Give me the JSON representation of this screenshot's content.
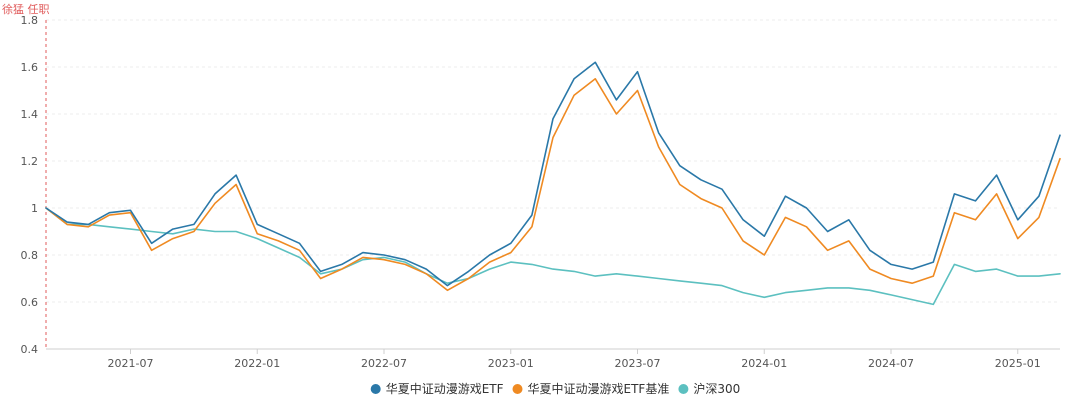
{
  "chart_data": {
    "type": "line",
    "annotation": {
      "label": "徐猛 任职",
      "date": "2021-03",
      "color": "#e05b5b"
    },
    "ylim": [
      0.4,
      1.8
    ],
    "yticks": [
      0.4,
      0.6,
      0.8,
      1,
      1.2,
      1.4,
      1.6,
      1.8
    ],
    "ytick_labels": [
      "0.4",
      "0.6",
      "0.8",
      "1",
      "1.2",
      "1.4",
      "1.6",
      "1.8"
    ],
    "xlim": [
      "2021-03",
      "2025-03"
    ],
    "xticks": [
      "2021-07",
      "2022-01",
      "2022-07",
      "2023-01",
      "2023-07",
      "2024-01",
      "2024-07",
      "2025-01"
    ],
    "grid": true,
    "legend_position": "bottom-center",
    "x": [
      "2021-03",
      "2021-04",
      "2021-05",
      "2021-06",
      "2021-07",
      "2021-08",
      "2021-09",
      "2021-10",
      "2021-11",
      "2021-12",
      "2022-01",
      "2022-02",
      "2022-03",
      "2022-04",
      "2022-05",
      "2022-06",
      "2022-07",
      "2022-08",
      "2022-09",
      "2022-10",
      "2022-11",
      "2022-12",
      "2023-01",
      "2023-02",
      "2023-03",
      "2023-04",
      "2023-05",
      "2023-06",
      "2023-07",
      "2023-08",
      "2023-09",
      "2023-10",
      "2023-11",
      "2023-12",
      "2024-01",
      "2024-02",
      "2024-03",
      "2024-04",
      "2024-05",
      "2024-06",
      "2024-07",
      "2024-08",
      "2024-09",
      "2024-10",
      "2024-11",
      "2024-12",
      "2025-01",
      "2025-02",
      "2025-03"
    ],
    "series": [
      {
        "name": "华夏中证动漫游戏ETF",
        "color": "#2a78a8",
        "values": [
          1.0,
          0.94,
          0.93,
          0.98,
          0.99,
          0.85,
          0.91,
          0.93,
          1.06,
          1.14,
          0.93,
          0.89,
          0.85,
          0.73,
          0.76,
          0.81,
          0.8,
          0.78,
          0.74,
          0.67,
          0.73,
          0.8,
          0.85,
          0.97,
          1.38,
          1.55,
          1.62,
          1.46,
          1.58,
          1.32,
          1.18,
          1.12,
          1.08,
          0.95,
          0.88,
          1.05,
          1.0,
          0.9,
          0.95,
          0.82,
          0.76,
          0.74,
          0.77,
          1.06,
          1.03,
          1.14,
          0.95,
          1.05,
          1.31
        ]
      },
      {
        "name": "华夏中证动漫游戏ETF基准",
        "color": "#ef8a22",
        "values": [
          1.0,
          0.93,
          0.92,
          0.97,
          0.98,
          0.82,
          0.87,
          0.9,
          1.02,
          1.1,
          0.89,
          0.86,
          0.82,
          0.7,
          0.74,
          0.79,
          0.78,
          0.76,
          0.72,
          0.65,
          0.7,
          0.77,
          0.81,
          0.92,
          1.3,
          1.48,
          1.55,
          1.4,
          1.5,
          1.26,
          1.1,
          1.04,
          1.0,
          0.86,
          0.8,
          0.96,
          0.92,
          0.82,
          0.86,
          0.74,
          0.7,
          0.68,
          0.71,
          0.98,
          0.95,
          1.06,
          0.87,
          0.96,
          1.21
        ]
      },
      {
        "name": "沪深300",
        "color": "#5cc0c0",
        "values": [
          1.0,
          0.93,
          0.93,
          0.92,
          0.91,
          0.9,
          0.89,
          0.91,
          0.9,
          0.9,
          0.87,
          0.83,
          0.79,
          0.72,
          0.74,
          0.78,
          0.79,
          0.77,
          0.72,
          0.68,
          0.7,
          0.74,
          0.77,
          0.76,
          0.74,
          0.73,
          0.71,
          0.72,
          0.71,
          0.7,
          0.69,
          0.68,
          0.67,
          0.64,
          0.62,
          0.64,
          0.65,
          0.66,
          0.66,
          0.65,
          0.63,
          0.61,
          0.59,
          0.76,
          0.73,
          0.74,
          0.71,
          0.71,
          0.72
        ]
      }
    ]
  }
}
